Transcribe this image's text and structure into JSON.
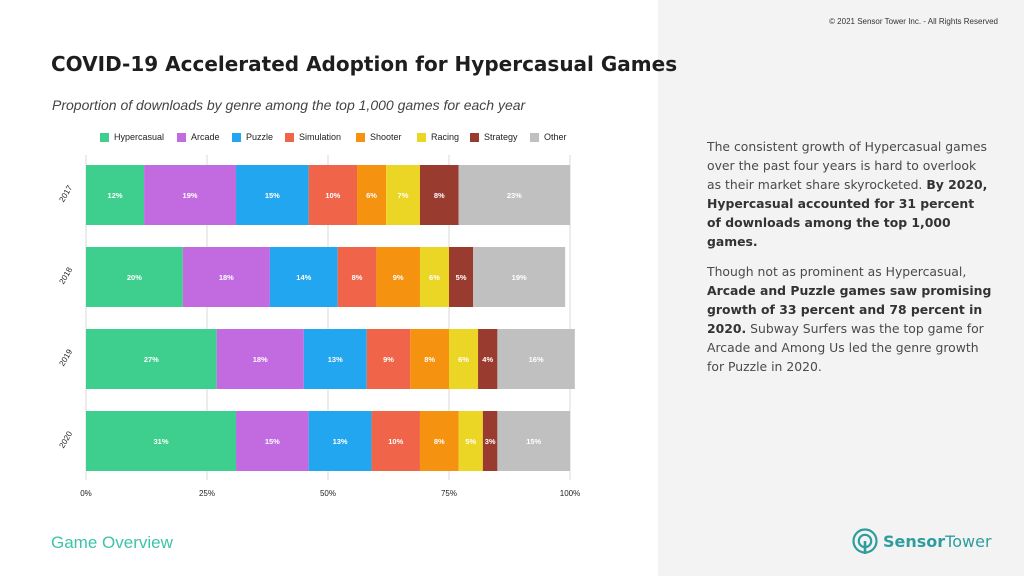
{
  "header": {
    "title": "COVID-19 Accelerated Adoption for Hypercasual Games",
    "subtitle": "Proportion of downloads by genre among the top 1,000 games for each year",
    "copyright": "© 2021 Sensor Tower Inc. - All Rights Reserved"
  },
  "footer": {
    "section": "Game Overview",
    "logo_part1": "Sensor",
    "logo_part2": "Tower"
  },
  "commentary": {
    "p1_text": "The consistent growth of Hypercasual games over the past four years is hard to overlook as their market share skyrocketed. ",
    "p1_bold": "By 2020, Hypercasual accounted for 31 percent of downloads among the top 1,000 games.",
    "p2_text1": "Though not as prominent as Hypercasual, ",
    "p2_bold": "Arcade and Puzzle games saw promising growth of 33 percent and 78 percent in 2020.",
    "p2_text2": " Subway Surfers was the top game for Arcade and  Among Us led the genre growth for Puzzle in 2020."
  },
  "chart_data": {
    "type": "bar",
    "orientation": "horizontal",
    "stacked": true,
    "categories": [
      "2017",
      "2018",
      "2019",
      "2020"
    ],
    "series": [
      {
        "name": "Hypercasual",
        "color": "#3ecf8e",
        "values": [
          12,
          20,
          27,
          31
        ],
        "labels": [
          "12%",
          "20%",
          "27%",
          "31%"
        ]
      },
      {
        "name": "Arcade",
        "color": "#c26be0",
        "values": [
          19,
          18,
          18,
          15
        ],
        "labels": [
          "19%",
          "18%",
          "18%",
          "15%"
        ]
      },
      {
        "name": "Puzzle",
        "color": "#22a6ef",
        "values": [
          15,
          14,
          13,
          13
        ],
        "labels": [
          "15%",
          "14%",
          "13%",
          "13%"
        ]
      },
      {
        "name": "Simulation",
        "color": "#f0654a",
        "values": [
          10,
          8,
          9,
          10
        ],
        "labels": [
          "10%",
          "8%",
          "9%",
          "10%"
        ]
      },
      {
        "name": "Shooter",
        "color": "#f5920f",
        "values": [
          6,
          9,
          8,
          8
        ],
        "labels": [
          "6%",
          "9%",
          "8%",
          "8%"
        ]
      },
      {
        "name": "Racing",
        "color": "#ecd625",
        "values": [
          7,
          6,
          6,
          5
        ],
        "labels": [
          "7%",
          "6%",
          "6%",
          "5%"
        ]
      },
      {
        "name": "Strategy",
        "color": "#9a3b30",
        "values": [
          8,
          5,
          4,
          3
        ],
        "labels": [
          "8%",
          "5%",
          "4%",
          "3%"
        ]
      },
      {
        "name": "Other",
        "color": "#c0c0c0",
        "values": [
          23,
          19,
          16,
          15
        ],
        "labels": [
          "23%",
          "19%",
          "16%",
          "15%"
        ]
      }
    ],
    "xlim": [
      0,
      100
    ],
    "xticks": [
      0,
      25,
      50,
      75,
      100
    ],
    "xtick_labels": [
      "0%",
      "25%",
      "50%",
      "75%",
      "100%"
    ],
    "grid": "vertical gridlines",
    "legend_position": "top",
    "title": "COVID-19 Accelerated Adoption for Hypercasual Games",
    "subtitle": "Proportion of downloads by genre among the top 1,000 games for each year"
  }
}
